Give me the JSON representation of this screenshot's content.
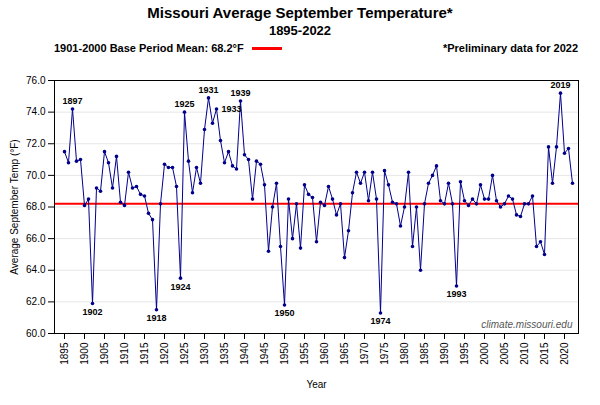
{
  "chart_data": {
    "type": "line",
    "title": "Missouri Average September Temperature*",
    "subtitle": "1895-2022",
    "x_label": "Year",
    "y_label": "Average September Temp (°F)",
    "x": [
      1895,
      1896,
      1897,
      1898,
      1899,
      1900,
      1901,
      1902,
      1903,
      1904,
      1905,
      1906,
      1907,
      1908,
      1909,
      1910,
      1911,
      1912,
      1913,
      1914,
      1915,
      1916,
      1917,
      1918,
      1919,
      1920,
      1921,
      1922,
      1923,
      1924,
      1925,
      1926,
      1927,
      1928,
      1929,
      1930,
      1931,
      1932,
      1933,
      1934,
      1935,
      1936,
      1937,
      1938,
      1939,
      1940,
      1941,
      1942,
      1943,
      1944,
      1945,
      1946,
      1947,
      1948,
      1949,
      1950,
      1951,
      1952,
      1953,
      1954,
      1955,
      1956,
      1957,
      1958,
      1959,
      1960,
      1961,
      1962,
      1963,
      1964,
      1965,
      1966,
      1967,
      1968,
      1969,
      1970,
      1971,
      1972,
      1973,
      1974,
      1975,
      1976,
      1977,
      1978,
      1979,
      1980,
      1981,
      1982,
      1983,
      1984,
      1985,
      1986,
      1987,
      1988,
      1989,
      1990,
      1991,
      1992,
      1993,
      1994,
      1995,
      1996,
      1997,
      1998,
      1999,
      2000,
      2001,
      2002,
      2003,
      2004,
      2005,
      2006,
      2007,
      2008,
      2009,
      2010,
      2011,
      2012,
      2013,
      2014,
      2015,
      2016,
      2017,
      2018,
      2019,
      2020,
      2021,
      2022
    ],
    "values": [
      71.5,
      70.8,
      74.2,
      70.9,
      71.0,
      68.1,
      68.5,
      61.9,
      69.2,
      69.0,
      71.5,
      70.8,
      69.2,
      71.2,
      68.3,
      68.1,
      70.2,
      69.2,
      69.3,
      68.8,
      68.7,
      67.6,
      67.2,
      61.5,
      68.2,
      70.7,
      70.5,
      70.5,
      69.3,
      63.5,
      74.0,
      70.9,
      68.9,
      70.5,
      69.5,
      72.9,
      74.9,
      73.3,
      74.2,
      72.2,
      70.8,
      71.5,
      70.6,
      70.4,
      74.7,
      71.3,
      71.0,
      68.5,
      70.9,
      70.7,
      69.4,
      65.2,
      68.0,
      69.5,
      65.5,
      61.8,
      68.5,
      66.0,
      68.2,
      65.4,
      69.4,
      68.8,
      68.6,
      65.8,
      68.3,
      68.1,
      69.3,
      68.5,
      67.5,
      68.2,
      64.8,
      66.5,
      68.9,
      70.2,
      69.5,
      70.2,
      68.4,
      70.2,
      68.5,
      61.3,
      70.3,
      69.4,
      68.3,
      68.2,
      66.8,
      68.0,
      70.2,
      65.5,
      68.0,
      64.0,
      68.2,
      69.5,
      70.0,
      70.6,
      68.4,
      68.2,
      69.5,
      68.2,
      63.0,
      69.6,
      68.4,
      68.1,
      68.5,
      68.2,
      69.4,
      68.5,
      68.5,
      70.0,
      68.4,
      68.0,
      68.2,
      68.7,
      68.5,
      67.5,
      67.4,
      68.2,
      68.2,
      68.7,
      65.5,
      65.8,
      65.0,
      71.8,
      69.5,
      71.8,
      75.2,
      71.4,
      71.7,
      69.5
    ],
    "color": "#00008B",
    "marker": "o",
    "xlim": [
      1892.5,
      2023.5
    ],
    "xticks": [
      1895,
      1900,
      1905,
      1910,
      1915,
      1920,
      1925,
      1930,
      1935,
      1940,
      1945,
      1950,
      1955,
      1960,
      1965,
      1970,
      1975,
      1980,
      1985,
      1990,
      1995,
      2000,
      2005,
      2010,
      2015,
      2020
    ],
    "ylim": [
      60.0,
      76.0
    ],
    "yticks": [
      {
        "value": 60.0,
        "label": "60.0"
      },
      {
        "value": 62.0,
        "label": "62.0"
      },
      {
        "value": 64.0,
        "label": "64.0"
      },
      {
        "value": 66.0,
        "label": "66.0"
      },
      {
        "value": 68.0,
        "label": "68.0"
      },
      {
        "value": 70.0,
        "label": "70.0"
      },
      {
        "value": 72.0,
        "label": "72.0"
      },
      {
        "value": 74.0,
        "label": "74.0"
      },
      {
        "value": 76.0,
        "label": "76.0"
      }
    ],
    "grid": "y",
    "mean_line": {
      "value": 68.2,
      "label": "1901-2000 Base Period Mean: 68.2°F",
      "color": "#FF0000"
    },
    "annotations": [
      {
        "x": 1897,
        "y": 74.2,
        "text": "1897"
      },
      {
        "x": 1902,
        "y": 61.9,
        "text": "1902"
      },
      {
        "x": 1918,
        "y": 61.5,
        "text": "1918"
      },
      {
        "x": 1924,
        "y": 63.5,
        "text": "1924"
      },
      {
        "x": 1925,
        "y": 74.0,
        "text": "1925"
      },
      {
        "x": 1931,
        "y": 74.9,
        "text": "1931"
      },
      {
        "x": 1933,
        "y": 74.2,
        "text": "1933"
      },
      {
        "x": 1939,
        "y": 74.7,
        "text": "1939"
      },
      {
        "x": 1950,
        "y": 61.8,
        "text": "1950"
      },
      {
        "x": 1974,
        "y": 61.3,
        "text": "1974"
      },
      {
        "x": 1993,
        "y": 63.0,
        "text": "1993"
      },
      {
        "x": 2019,
        "y": 75.2,
        "text": "2019"
      }
    ],
    "footnote": "*Preliminary data for 2022",
    "watermark": "climate.missouri.edu"
  }
}
